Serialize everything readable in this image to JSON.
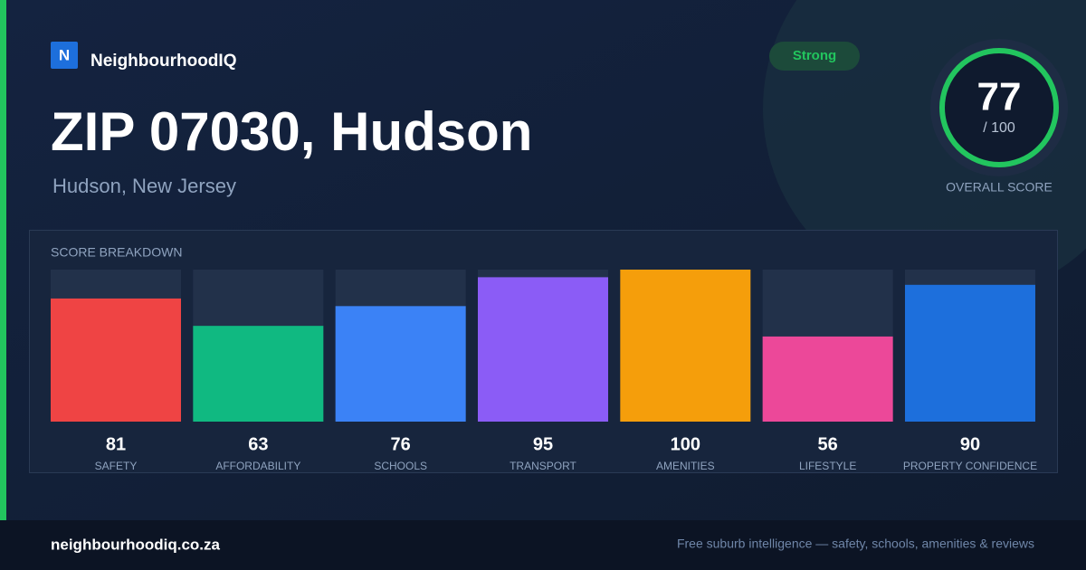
{
  "brand": {
    "logo_letter": "N",
    "name": "NeighbourhoodIQ"
  },
  "title": "ZIP 07030, Hudson",
  "subtitle": "Hudson, New Jersey",
  "badge": "Strong",
  "score": {
    "value": 77,
    "max_label": "/ 100",
    "label": "OVERALL SCORE"
  },
  "chart_data": {
    "type": "bar",
    "title": "SCORE BREAKDOWN",
    "categories": [
      "SAFETY",
      "AFFORDABILITY",
      "SCHOOLS",
      "TRANSPORT",
      "AMENITIES",
      "LIFESTYLE",
      "PROPERTY CONFIDENCE"
    ],
    "values": [
      81,
      63,
      76,
      95,
      100,
      56,
      90
    ],
    "colors": [
      "#ef4444",
      "#10b981",
      "#3b82f6",
      "#8b5cf6",
      "#f59e0b",
      "#ec4899",
      "#1d6fdc"
    ],
    "ylim": [
      0,
      100
    ]
  },
  "footer": {
    "url": "neighbourhoodiq.co.za",
    "tagline": "Free suburb intelligence — safety, schools, amenities & reviews"
  }
}
